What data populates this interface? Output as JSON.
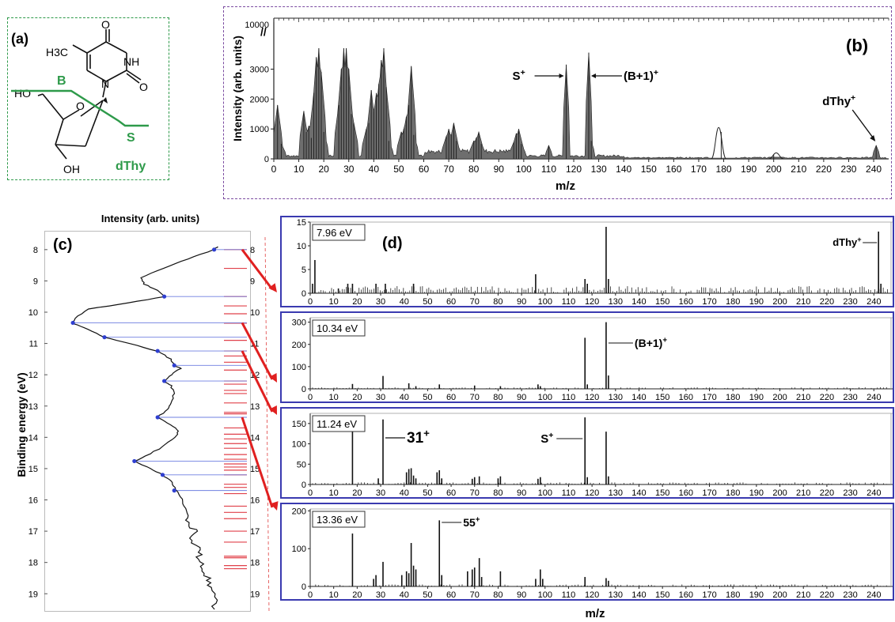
{
  "panel_a": {
    "label": "(a)",
    "molecule": "dThy",
    "methyl_label": "H3C",
    "atom_O_top": "O",
    "atom_NH": "NH",
    "atom_O_right": "O",
    "atom_N": "N",
    "atom_O_ring": "O",
    "atom_HO": "HO",
    "atom_OH": "OH",
    "cut_B": "B",
    "cut_S": "S",
    "colors": {
      "border": "#2e9a4a",
      "fragment": "#2e9a4a"
    }
  },
  "chart_data": [
    {
      "id": "b",
      "panel_label": "(b)",
      "type": "area",
      "xlabel": "m/z",
      "ylabel": "Intensity (arb. units)",
      "x_ticks": [
        0,
        10,
        20,
        30,
        40,
        50,
        60,
        70,
        80,
        90,
        100,
        110,
        120,
        130,
        140,
        150,
        160,
        170,
        180,
        190,
        200,
        210,
        220,
        230,
        240
      ],
      "y_ticks": [
        "0",
        "1000",
        "2000",
        "3000",
        "10000"
      ],
      "xlim": [
        0,
        246
      ],
      "ylim": [
        0,
        4000
      ],
      "y_break": {
        "lower_max": 3700,
        "upper_tick": 10000
      },
      "peaks": [
        [
          1.5,
          1800
        ],
        [
          3,
          500
        ],
        [
          12,
          1600
        ],
        [
          13,
          900
        ],
        [
          14,
          1100
        ],
        [
          15,
          700
        ],
        [
          16,
          2200
        ],
        [
          17,
          3400
        ],
        [
          18,
          3700
        ],
        [
          19,
          2900
        ],
        [
          20,
          900
        ],
        [
          26,
          1800
        ],
        [
          27,
          3000
        ],
        [
          28,
          3700
        ],
        [
          29,
          3700
        ],
        [
          30,
          3000
        ],
        [
          31,
          1500
        ],
        [
          32,
          1200
        ],
        [
          37,
          1000
        ],
        [
          38,
          1200
        ],
        [
          39,
          2300
        ],
        [
          40,
          1600
        ],
        [
          41,
          2200
        ],
        [
          42,
          2500
        ],
        [
          43,
          3300
        ],
        [
          44,
          3700
        ],
        [
          45,
          2400
        ],
        [
          46,
          600
        ],
        [
          51,
          900
        ],
        [
          52,
          1000
        ],
        [
          53,
          1400
        ],
        [
          54,
          1800
        ],
        [
          55,
          3100
        ],
        [
          56,
          800
        ],
        [
          69,
          750
        ],
        [
          70,
          1000
        ],
        [
          71,
          800
        ],
        [
          72,
          1200
        ],
        [
          73,
          600
        ],
        [
          80,
          600
        ],
        [
          81,
          700
        ],
        [
          82,
          900
        ],
        [
          83,
          500
        ],
        [
          96,
          550
        ],
        [
          97,
          850
        ],
        [
          98,
          1000
        ],
        [
          99,
          500
        ],
        [
          110,
          450
        ],
        [
          117,
          3150
        ],
        [
          126,
          3550
        ],
        [
          127,
          600
        ],
        [
          179,
          900
        ],
        [
          200,
          150
        ],
        [
          241,
          450
        ]
      ],
      "outline_peaks": [
        [
          178,
          1050
        ],
        [
          201,
          200
        ]
      ],
      "annotations": [
        {
          "text": "S",
          "sup": "+",
          "x": 117
        },
        {
          "text": "(B+1)",
          "sup": "+",
          "x": 126
        },
        {
          "text": "dThy",
          "sup": "+",
          "x": 241
        }
      ],
      "colors": {
        "fill": "#6e6e6e",
        "line": "#222222"
      }
    },
    {
      "id": "c",
      "panel_label": "(c)",
      "type": "line",
      "xlabel": "Intensity (arb. units)",
      "ylabel": "Binding energy (eV)",
      "y_ticks": [
        8,
        9,
        10,
        11,
        12,
        13,
        14,
        15,
        16,
        17,
        18,
        19
      ],
      "ylim": [
        7.6,
        19.6
      ],
      "orientation": "vertical-energy",
      "profile": [
        [
          7.9,
          0.88
        ],
        [
          8.0,
          0.86
        ],
        [
          8.3,
          0.7
        ],
        [
          8.6,
          0.55
        ],
        [
          8.9,
          0.42
        ],
        [
          9.1,
          0.44
        ],
        [
          9.3,
          0.52
        ],
        [
          9.5,
          0.56
        ],
        [
          9.7,
          0.35
        ],
        [
          9.9,
          0.1
        ],
        [
          10.2,
          0.02
        ],
        [
          10.36,
          0.01
        ],
        [
          10.55,
          0.1
        ],
        [
          10.8,
          0.2
        ],
        [
          11.0,
          0.35
        ],
        [
          11.25,
          0.52
        ],
        [
          11.5,
          0.6
        ],
        [
          11.7,
          0.62
        ],
        [
          11.8,
          0.66
        ],
        [
          12.0,
          0.6
        ],
        [
          12.2,
          0.56
        ],
        [
          12.35,
          0.6
        ],
        [
          12.6,
          0.62
        ],
        [
          12.9,
          0.6
        ],
        [
          13.1,
          0.58
        ],
        [
          13.36,
          0.52
        ],
        [
          13.6,
          0.6
        ],
        [
          13.8,
          0.65
        ],
        [
          14.0,
          0.62
        ],
        [
          14.3,
          0.55
        ],
        [
          14.6,
          0.45
        ],
        [
          14.76,
          0.38
        ],
        [
          15.0,
          0.48
        ],
        [
          15.2,
          0.55
        ],
        [
          15.4,
          0.6
        ],
        [
          15.6,
          0.62
        ],
        [
          15.9,
          0.66
        ],
        [
          16.2,
          0.68
        ],
        [
          16.5,
          0.7
        ],
        [
          16.8,
          0.7
        ],
        [
          17.0,
          0.76
        ],
        [
          17.3,
          0.72
        ],
        [
          17.6,
          0.78
        ],
        [
          17.9,
          0.76
        ],
        [
          18.2,
          0.8
        ],
        [
          18.5,
          0.82
        ],
        [
          18.8,
          0.84
        ],
        [
          19.2,
          0.86
        ],
        [
          19.6,
          0.87
        ]
      ],
      "measured_points": [
        8.0,
        9.5,
        10.34,
        10.8,
        11.24,
        11.7,
        12.2,
        13.36,
        14.76,
        15.2,
        15.7
      ],
      "red_levels": [
        8.0,
        8.6,
        9.5,
        9.8,
        10.05,
        10.35,
        10.9,
        11.24,
        11.4,
        11.6,
        11.85,
        12.2,
        12.3,
        12.5,
        12.6,
        12.9,
        13.2,
        13.25,
        13.7,
        13.9,
        14.05,
        14.2,
        14.35,
        14.55,
        14.7,
        14.85,
        14.95,
        15.05,
        15.2,
        15.5,
        15.6,
        15.8,
        16.2,
        16.4,
        16.6,
        17.0,
        17.35,
        17.8,
        17.85,
        18.1,
        18.2
      ],
      "colors": {
        "curve": "#111111",
        "dots": "#2f3fd0",
        "hlines": "#6f7fe0",
        "levels": "#e0404a",
        "arrows": "#e02020"
      }
    },
    {
      "id": "d1",
      "type": "bar",
      "energy_label": "7.96 eV",
      "panel_label": "(d)",
      "x_ticks": [
        0,
        10,
        20,
        30,
        40,
        50,
        60,
        70,
        80,
        90,
        100,
        110,
        120,
        130,
        140,
        150,
        160,
        170,
        180,
        190,
        200,
        210,
        220,
        230,
        240
      ],
      "y_ticks": [
        0,
        5,
        10,
        15
      ],
      "ylim": [
        0,
        15
      ],
      "xlim": [
        0,
        248
      ],
      "peaks": [
        [
          1,
          2
        ],
        [
          2,
          7
        ],
        [
          12,
          1
        ],
        [
          16,
          2
        ],
        [
          18,
          2
        ],
        [
          28,
          2
        ],
        [
          32,
          2
        ],
        [
          44,
          2
        ],
        [
          96,
          4
        ],
        [
          117,
          3
        ],
        [
          118,
          2
        ],
        [
          126,
          14
        ],
        [
          127,
          3
        ],
        [
          242,
          13
        ],
        [
          243,
          2
        ]
      ],
      "noise_level": 1.5,
      "annotations": [
        {
          "text": "dThy",
          "sup": "+",
          "x": 242
        }
      ]
    },
    {
      "id": "d2",
      "type": "bar",
      "energy_label": "10.34 eV",
      "x_ticks": [
        0,
        10,
        20,
        30,
        40,
        50,
        60,
        70,
        80,
        90,
        100,
        110,
        120,
        130,
        140,
        150,
        160,
        170,
        180,
        190,
        200,
        210,
        220,
        230,
        240
      ],
      "y_ticks": [
        0,
        100,
        200,
        300
      ],
      "ylim": [
        0,
        320
      ],
      "xlim": [
        0,
        248
      ],
      "peaks": [
        [
          18,
          22
        ],
        [
          31,
          58
        ],
        [
          42,
          25
        ],
        [
          45,
          12
        ],
        [
          55,
          20
        ],
        [
          70,
          15
        ],
        [
          81,
          12
        ],
        [
          97,
          20
        ],
        [
          98,
          12
        ],
        [
          117,
          230
        ],
        [
          118,
          20
        ],
        [
          126,
          300
        ],
        [
          127,
          60
        ]
      ],
      "noise_level": 8,
      "annotations": [
        {
          "text": "(B+1)",
          "sup": "+",
          "x": 126
        }
      ]
    },
    {
      "id": "d3",
      "type": "bar",
      "energy_label": "11.24 eV",
      "x_ticks": [
        0,
        10,
        20,
        30,
        40,
        50,
        60,
        70,
        80,
        90,
        100,
        110,
        120,
        130,
        140,
        150,
        160,
        170,
        180,
        190,
        200,
        210,
        220,
        230,
        240
      ],
      "y_ticks": [
        0,
        50,
        100,
        150
      ],
      "ylim": [
        0,
        175
      ],
      "xlim": [
        0,
        248
      ],
      "peaks": [
        [
          18,
          155
        ],
        [
          29,
          15
        ],
        [
          31,
          160
        ],
        [
          41,
          30
        ],
        [
          42,
          38
        ],
        [
          43,
          40
        ],
        [
          44,
          22
        ],
        [
          45,
          15
        ],
        [
          54,
          30
        ],
        [
          55,
          35
        ],
        [
          56,
          15
        ],
        [
          69,
          14
        ],
        [
          70,
          18
        ],
        [
          72,
          20
        ],
        [
          80,
          15
        ],
        [
          81,
          20
        ],
        [
          97,
          14
        ],
        [
          98,
          18
        ],
        [
          117,
          165
        ],
        [
          118,
          18
        ],
        [
          126,
          130
        ],
        [
          127,
          20
        ]
      ],
      "noise_level": 6,
      "annotations": [
        {
          "text": "31",
          "sup": "+",
          "x": 31
        },
        {
          "text": "S",
          "sup": "+",
          "x": 117
        }
      ]
    },
    {
      "id": "d4",
      "type": "bar",
      "energy_label": "13.36 eV",
      "x_ticks": [
        0,
        10,
        20,
        30,
        40,
        50,
        60,
        70,
        80,
        90,
        100,
        110,
        120,
        130,
        140,
        150,
        160,
        170,
        180,
        190,
        200,
        210,
        220,
        230,
        240
      ],
      "y_ticks": [
        0,
        100,
        200
      ],
      "ylim": [
        0,
        205
      ],
      "xlim": [
        0,
        248
      ],
      "peaks": [
        [
          18,
          140
        ],
        [
          27,
          20
        ],
        [
          28,
          30
        ],
        [
          31,
          65
        ],
        [
          39,
          30
        ],
        [
          41,
          40
        ],
        [
          42,
          35
        ],
        [
          43,
          115
        ],
        [
          44,
          55
        ],
        [
          45,
          45
        ],
        [
          55,
          175
        ],
        [
          56,
          30
        ],
        [
          67,
          40
        ],
        [
          69,
          45
        ],
        [
          70,
          50
        ],
        [
          72,
          75
        ],
        [
          73,
          25
        ],
        [
          81,
          40
        ],
        [
          96,
          20
        ],
        [
          98,
          45
        ],
        [
          99,
          20
        ],
        [
          117,
          25
        ],
        [
          126,
          22
        ],
        [
          127,
          15
        ]
      ],
      "noise_level": 6,
      "annotations": [
        {
          "text": "55",
          "sup": "+",
          "x": 55
        }
      ]
    }
  ],
  "shared_xlabel": "m/z"
}
